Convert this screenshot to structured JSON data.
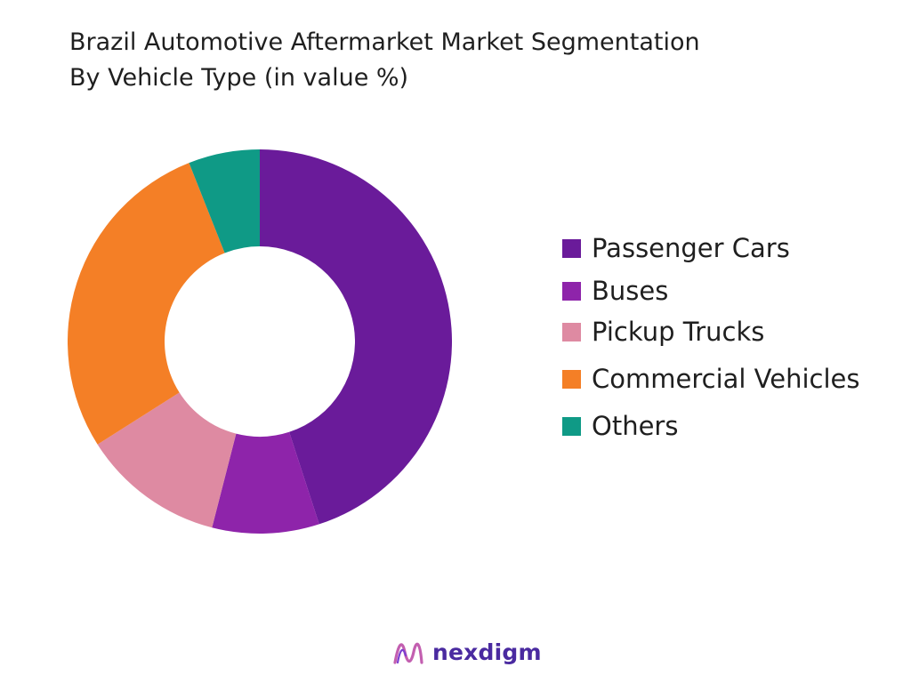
{
  "title_line1": "Brazil Automotive Aftermarket Market Segmentation",
  "title_line2": "By Vehicle Type (in value %)",
  "chart_data": {
    "type": "pie",
    "donut": true,
    "categories": [
      "Passenger Cars",
      "Buses",
      "Pickup Trucks",
      "Commercial Vehicles",
      "Others"
    ],
    "values": [
      45,
      9,
      12,
      28,
      6
    ],
    "colors": [
      "#6a1b9a",
      "#8e24aa",
      "#de8aa2",
      "#f47f26",
      "#0f9a86"
    ],
    "legend_position": "right",
    "start_angle": "12 o'clock",
    "direction": "clockwise"
  },
  "footer": {
    "brand": "nexdigm",
    "brand_color": "#4a2aa0",
    "logo_icon": "nexdigm-logo-icon"
  }
}
